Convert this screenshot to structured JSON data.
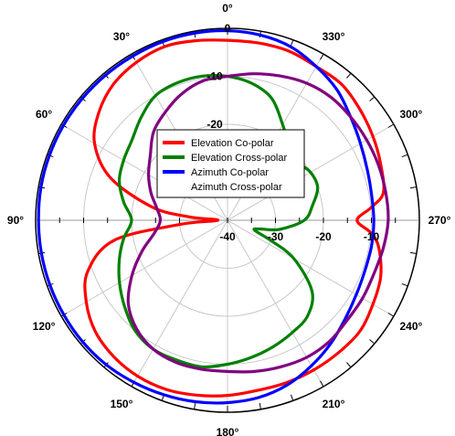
{
  "chart_data": {
    "type": "polar-line",
    "title": "",
    "angle_direction": "counterclockwise",
    "zero_angle_position": "top",
    "r_range": [
      -40,
      0
    ],
    "r_ticks": [
      -40,
      -30,
      -20,
      -10,
      0
    ],
    "r_tick_labels": [
      "-40",
      "-30",
      "-20",
      "-10",
      "0"
    ],
    "angle_labels": [
      {
        "angle": 0,
        "text": "0°"
      },
      {
        "angle": 30,
        "text": "30°"
      },
      {
        "angle": 60,
        "text": "60°"
      },
      {
        "angle": 90,
        "text": "90°"
      },
      {
        "angle": 120,
        "text": "120°"
      },
      {
        "angle": 150,
        "text": "150°"
      },
      {
        "angle": 180,
        "text": "180°"
      },
      {
        "angle": 210,
        "text": "210°"
      },
      {
        "angle": 240,
        "text": "240°"
      },
      {
        "angle": 270,
        "text": "270°"
      },
      {
        "angle": 300,
        "text": "300°"
      },
      {
        "angle": 330,
        "text": "330°"
      }
    ],
    "grid": true,
    "legend_position": "center",
    "series": [
      {
        "name": "Elevation Co-polar",
        "color": "#ff0000",
        "points": [
          [
            0,
            -2.5
          ],
          [
            10,
            -2
          ],
          [
            20,
            -1.5
          ],
          [
            30,
            -2
          ],
          [
            40,
            -3
          ],
          [
            50,
            -5
          ],
          [
            60,
            -8
          ],
          [
            70,
            -14
          ],
          [
            80,
            -24
          ],
          [
            85,
            -32
          ],
          [
            90,
            -38
          ],
          [
            95,
            -30
          ],
          [
            100,
            -16
          ],
          [
            110,
            -9
          ],
          [
            120,
            -6
          ],
          [
            130,
            -4
          ],
          [
            140,
            -3
          ],
          [
            150,
            -2.5
          ],
          [
            160,
            -2.5
          ],
          [
            170,
            -3
          ],
          [
            180,
            -3.5
          ],
          [
            190,
            -4
          ],
          [
            200,
            -4
          ],
          [
            210,
            -4
          ],
          [
            220,
            -4
          ],
          [
            230,
            -4
          ],
          [
            240,
            -5
          ],
          [
            250,
            -6
          ],
          [
            260,
            -8
          ],
          [
            265,
            -10
          ],
          [
            270,
            -13
          ],
          [
            275,
            -10
          ],
          [
            280,
            -7
          ],
          [
            290,
            -6
          ],
          [
            300,
            -5
          ],
          [
            310,
            -4
          ],
          [
            320,
            -3
          ],
          [
            330,
            -3
          ],
          [
            340,
            -2.5
          ],
          [
            350,
            -2.5
          ]
        ]
      },
      {
        "name": "Elevation Cross-polar",
        "color": "#008000",
        "points": [
          [
            0,
            -10
          ],
          [
            10,
            -9.5
          ],
          [
            20,
            -9.5
          ],
          [
            30,
            -10
          ],
          [
            40,
            -12
          ],
          [
            50,
            -14
          ],
          [
            60,
            -15
          ],
          [
            70,
            -16
          ],
          [
            80,
            -18
          ],
          [
            90,
            -20
          ],
          [
            100,
            -18
          ],
          [
            110,
            -16
          ],
          [
            120,
            -14
          ],
          [
            130,
            -12
          ],
          [
            140,
            -10
          ],
          [
            150,
            -9
          ],
          [
            160,
            -9
          ],
          [
            170,
            -9
          ],
          [
            180,
            -10
          ],
          [
            190,
            -11
          ],
          [
            200,
            -12
          ],
          [
            210,
            -13
          ],
          [
            220,
            -14
          ],
          [
            230,
            -17
          ],
          [
            240,
            -24
          ],
          [
            245,
            -30
          ],
          [
            250,
            -34
          ],
          [
            255,
            -33
          ],
          [
            260,
            -29
          ],
          [
            270,
            -24
          ],
          [
            280,
            -22
          ],
          [
            290,
            -20
          ],
          [
            300,
            -20
          ],
          [
            310,
            -21
          ],
          [
            320,
            -20
          ],
          [
            330,
            -17
          ],
          [
            340,
            -13
          ],
          [
            350,
            -11
          ]
        ]
      },
      {
        "name": "Azimuth Co-polar",
        "color": "#0000ff",
        "points": [
          [
            0,
            -0.5
          ],
          [
            10,
            -0.4
          ],
          [
            20,
            -0.4
          ],
          [
            30,
            -0.5
          ],
          [
            40,
            -0.5
          ],
          [
            50,
            -0.5
          ],
          [
            60,
            -0.5
          ],
          [
            70,
            -0.5
          ],
          [
            80,
            -0.5
          ],
          [
            90,
            -0.6
          ],
          [
            100,
            -0.6
          ],
          [
            110,
            -0.6
          ],
          [
            120,
            -0.6
          ],
          [
            130,
            -0.6
          ],
          [
            140,
            -0.7
          ],
          [
            150,
            -1
          ],
          [
            160,
            -1.3
          ],
          [
            170,
            -1.6
          ],
          [
            180,
            -2
          ],
          [
            190,
            -2.5
          ],
          [
            200,
            -3.5
          ],
          [
            210,
            -5
          ],
          [
            220,
            -6.5
          ],
          [
            230,
            -8
          ],
          [
            240,
            -9
          ],
          [
            250,
            -9.5
          ],
          [
            260,
            -9.5
          ],
          [
            270,
            -9.5
          ],
          [
            280,
            -9.5
          ],
          [
            290,
            -9
          ],
          [
            300,
            -8
          ],
          [
            310,
            -6.5
          ],
          [
            320,
            -4.5
          ],
          [
            330,
            -3
          ],
          [
            340,
            -1.5
          ],
          [
            350,
            -0.8
          ]
        ]
      },
      {
        "name": "Azimuth Cross-polar",
        "color": "#800080",
        "points": [
          [
            0,
            -10
          ],
          [
            10,
            -10.5
          ],
          [
            20,
            -12
          ],
          [
            30,
            -14
          ],
          [
            40,
            -16
          ],
          [
            50,
            -19
          ],
          [
            60,
            -21
          ],
          [
            70,
            -23
          ],
          [
            80,
            -25
          ],
          [
            90,
            -26
          ],
          [
            100,
            -24.5
          ],
          [
            110,
            -21
          ],
          [
            120,
            -17
          ],
          [
            130,
            -13
          ],
          [
            140,
            -10.5
          ],
          [
            150,
            -9
          ],
          [
            160,
            -8.5
          ],
          [
            170,
            -8.5
          ],
          [
            180,
            -8.5
          ],
          [
            190,
            -8
          ],
          [
            200,
            -7.5
          ],
          [
            210,
            -7
          ],
          [
            220,
            -7
          ],
          [
            230,
            -7.5
          ],
          [
            240,
            -7.5
          ],
          [
            250,
            -7.5
          ],
          [
            260,
            -7
          ],
          [
            270,
            -6.5
          ],
          [
            280,
            -6.5
          ],
          [
            290,
            -6.5
          ],
          [
            300,
            -6.5
          ],
          [
            310,
            -6.5
          ],
          [
            320,
            -6.5
          ],
          [
            330,
            -7
          ],
          [
            340,
            -8
          ],
          [
            350,
            -9
          ]
        ]
      }
    ]
  }
}
